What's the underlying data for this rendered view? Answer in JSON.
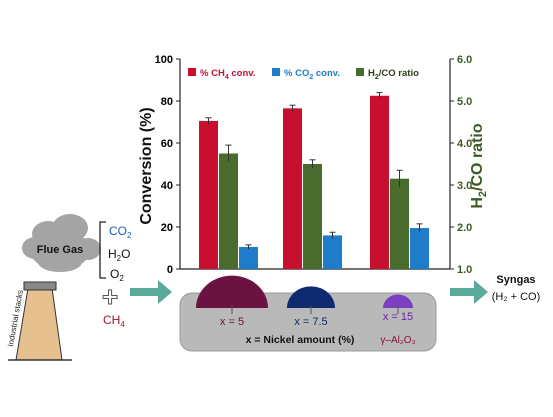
{
  "left_panel": {
    "cloud_label": "Flue Gas",
    "gas_co2": "CO",
    "gas_co2_sub": "2",
    "gas_h2o_a": "H",
    "gas_h2o_sub": "2",
    "gas_h2o_b": "O",
    "gas_o2": "O",
    "gas_o2_sub": "2",
    "plus": "+",
    "ch4": "CH",
    "ch4_sub": "4",
    "stack_label": "Industrial stacks"
  },
  "right_panel": {
    "product": "Syngas",
    "product_formula": "(H₂ + CO)"
  },
  "catalyst_panel": {
    "labels": [
      "x = 5",
      "x = 7.5",
      "x = 15"
    ],
    "caption": "x = Nickel amount (%)",
    "support": "γ–Al₂O₃",
    "colors": [
      "#6a1240",
      "#0f2a6e",
      "#7b3fbf"
    ]
  },
  "chart_data": {
    "type": "bar",
    "categories": [
      "x = 5",
      "x = 7.5",
      "x = 15"
    ],
    "series": [
      {
        "name": "% CH₄ conv.",
        "values": [
          70.5,
          76.5,
          82.5
        ],
        "errors": [
          1.5,
          1.5,
          1.5
        ],
        "color": "#c8102e",
        "axis": "left"
      },
      {
        "name": "% CO₂ conv.",
        "values": [
          10.5,
          16.0,
          19.5
        ],
        "errors": [
          1.0,
          1.5,
          2.0
        ],
        "color": "#1f7cc8",
        "axis": "left"
      },
      {
        "name": "H₂/CO ratio",
        "values": [
          3.75,
          3.5,
          3.15
        ],
        "errors": [
          0.2,
          0.1,
          0.2
        ],
        "color": "#4a6b2e",
        "axis": "right"
      }
    ],
    "ylabel": "Conversion (%)",
    "ylabel2": "H₂/CO ratio",
    "ylim": [
      0,
      100
    ],
    "y2lim": [
      1.0,
      6.0
    ],
    "yticks": [
      "0",
      "20",
      "40",
      "60",
      "80",
      "100"
    ],
    "y2ticks": [
      "1.0",
      "2.0",
      "3.0",
      "4.0",
      "5.0",
      "6.0"
    ],
    "legend": [
      {
        "text": "% CH",
        "sub": "4",
        "rest": " conv."
      },
      {
        "text": "% CO",
        "sub": "2",
        "rest": " conv."
      },
      {
        "text": "H",
        "sub": "2",
        "rest": "/CO ratio"
      }
    ],
    "legend_placement": "top",
    "grid": false,
    "colors": {
      "ch4": "#c8102e",
      "co2": "#1f7cc8",
      "ratio": "#4a6b2e",
      "left_axis_text": "#000000",
      "right_axis_text": "#3e5a23"
    }
  }
}
